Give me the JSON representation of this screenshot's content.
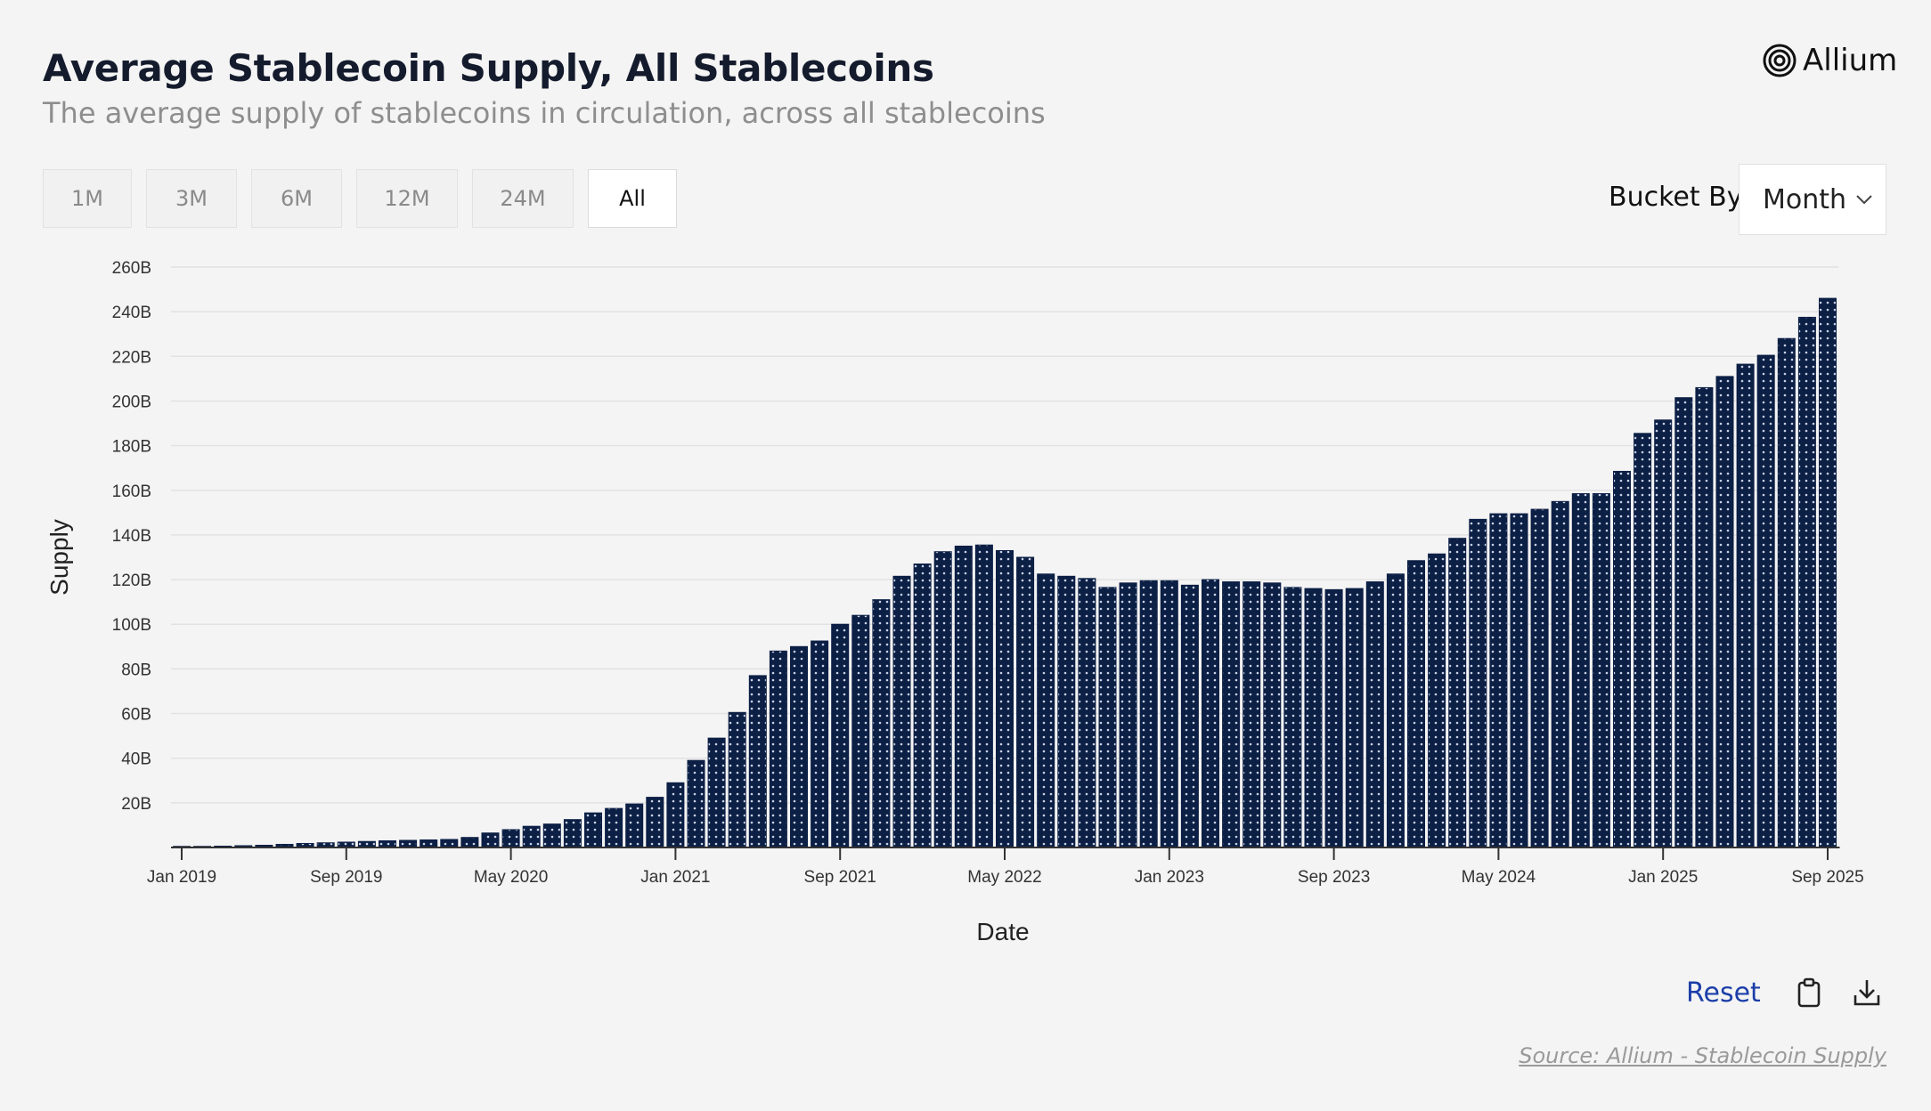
{
  "header": {
    "title": "Average Stablecoin Supply, All Stablecoins",
    "subtitle": "The average supply of stablecoins in circulation, across all stablecoins",
    "brand": "Allium"
  },
  "ranges": [
    {
      "label": "1M",
      "active": false
    },
    {
      "label": "3M",
      "active": false
    },
    {
      "label": "6M",
      "active": false
    },
    {
      "label": "12M",
      "active": false
    },
    {
      "label": "24M",
      "active": false
    },
    {
      "label": "All",
      "active": true
    }
  ],
  "bucket": {
    "label": "Bucket By",
    "value": "Month"
  },
  "footer": {
    "reset_label": "Reset",
    "source": "Source: Allium - Stablecoin Supply"
  },
  "colors": {
    "bar": "#0c1f45",
    "dot": "#c9d2e6",
    "grid": "#e2e2e2",
    "axis": "#333333",
    "reset": "#1b3ea8"
  },
  "chart_data": {
    "type": "bar",
    "title": "Average Stablecoin Supply, All Stablecoins",
    "xlabel": "Date",
    "ylabel": "Supply",
    "ylim": [
      0,
      260
    ],
    "yticks": [
      20,
      40,
      60,
      80,
      100,
      120,
      140,
      160,
      180,
      200,
      220,
      240,
      260
    ],
    "ytick_labels": [
      "20B",
      "40B",
      "60B",
      "80B",
      "100B",
      "120B",
      "140B",
      "160B",
      "180B",
      "200B",
      "220B",
      "240B",
      "260B"
    ],
    "unit": "B",
    "start": "Jan 2019",
    "x_tick_labels": [
      {
        "index": 0,
        "label": "Jan 2019"
      },
      {
        "index": 8,
        "label": "Sep 2019"
      },
      {
        "index": 16,
        "label": "May 2020"
      },
      {
        "index": 24,
        "label": "Jan 2021"
      },
      {
        "index": 32,
        "label": "Sep 2021"
      },
      {
        "index": 40,
        "label": "May 2022"
      },
      {
        "index": 48,
        "label": "Jan 2023"
      },
      {
        "index": 56,
        "label": "Sep 2023"
      },
      {
        "index": 64,
        "label": "May 2024"
      },
      {
        "index": 72,
        "label": "Jan 2025"
      },
      {
        "index": 80,
        "label": "Sep 2025"
      }
    ],
    "values": [
      0.5,
      0.5,
      0.6,
      0.8,
      1.0,
      1.4,
      1.8,
      2.1,
      2.4,
      2.7,
      3.0,
      3.2,
      3.4,
      3.6,
      4.5,
      6.5,
      8.0,
      9.5,
      10.5,
      12.5,
      15.5,
      17.5,
      19.5,
      22.5,
      29.0,
      39.0,
      49.0,
      60.5,
      77.0,
      88.0,
      90.0,
      92.5,
      100.0,
      104.0,
      111.0,
      121.5,
      127.0,
      132.5,
      135.0,
      135.5,
      133.0,
      130.0,
      122.5,
      121.5,
      120.5,
      116.5,
      118.5,
      119.5,
      119.5,
      117.5,
      120.0,
      119.0,
      119.0,
      118.5,
      116.5,
      116.0,
      115.5,
      116.0,
      119.0,
      122.5,
      128.5,
      131.5,
      138.5,
      147.0,
      149.5,
      149.5,
      151.5,
      155.0,
      158.5,
      158.5,
      168.5,
      185.5,
      191.5,
      201.5,
      206.0,
      211.0,
      216.5,
      220.5,
      228.0,
      237.5,
      246.0
    ]
  }
}
